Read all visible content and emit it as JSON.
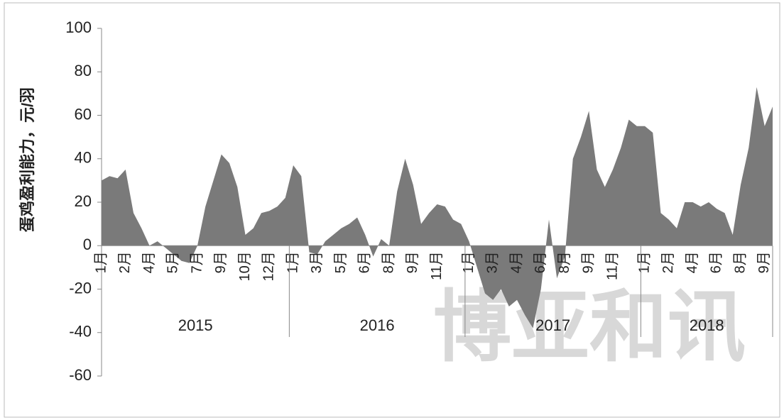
{
  "chart_data": {
    "type": "area",
    "y_label": "蛋鸡盈利能力，元/羽",
    "watermark": "博亚和讯",
    "categories": [
      "1月",
      null,
      null,
      "2月",
      null,
      null,
      "4月",
      null,
      null,
      "5月",
      null,
      null,
      "7月",
      null,
      null,
      "9月",
      null,
      null,
      "10月",
      null,
      null,
      "12月",
      null,
      null,
      "1月",
      null,
      null,
      "3月",
      null,
      null,
      "5月",
      null,
      null,
      "6月",
      null,
      null,
      "8月",
      null,
      null,
      "9月",
      null,
      null,
      "11月",
      null,
      null,
      null,
      "1月",
      null,
      null,
      "3月",
      null,
      null,
      "4月",
      null,
      null,
      "6月",
      null,
      null,
      "8月",
      null,
      null,
      "9月",
      null,
      null,
      "11月",
      null,
      null,
      null,
      "1月",
      null,
      null,
      "2月",
      null,
      null,
      "4月",
      null,
      null,
      "6月",
      null,
      null,
      "8月",
      null,
      null,
      "9月",
      null
    ],
    "groups": [
      {
        "label": "2015",
        "count": 24
      },
      {
        "label": "2016",
        "count": 22
      },
      {
        "label": "2017",
        "count": 22
      },
      {
        "label": "2018",
        "count": 17
      }
    ],
    "values": [
      30,
      32,
      31,
      35,
      15,
      8,
      0,
      2,
      -1,
      -4,
      -7,
      -8,
      0,
      18,
      30,
      42,
      38,
      27,
      5,
      8,
      15,
      16,
      18,
      22,
      37,
      32,
      -3,
      -4,
      2,
      5,
      8,
      10,
      13,
      5,
      -5,
      3,
      0,
      25,
      40,
      28,
      10,
      15,
      19,
      18,
      12,
      10,
      2,
      -10,
      -22,
      -25,
      -20,
      -28,
      -25,
      -32,
      -38,
      -20,
      12,
      -15,
      -5,
      40,
      50,
      62,
      35,
      27,
      35,
      45,
      58,
      55,
      55,
      52,
      15,
      12,
      8,
      20,
      20,
      18,
      20,
      17,
      15,
      5,
      28,
      45,
      73,
      55,
      64
    ],
    "color": "#7a7a7a",
    "ylim": [
      -60,
      100
    ],
    "yticks": [
      -60,
      -40,
      -20,
      0,
      20,
      40,
      60,
      80,
      100
    ]
  }
}
